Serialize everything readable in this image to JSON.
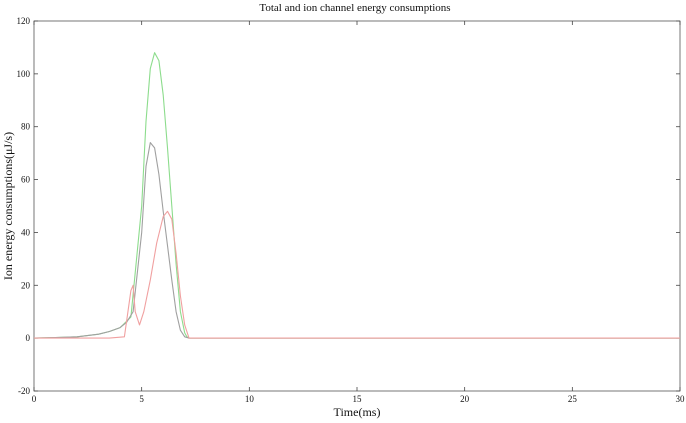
{
  "chart_data": {
    "type": "line",
    "title": "Total and ion channel energy consumptions",
    "xlabel": "Time(ms)",
    "ylabel": "Ion energy consumptions(μJ/s)",
    "xlim": [
      0,
      30
    ],
    "ylim": [
      -20,
      120
    ],
    "xticks": [
      0,
      5,
      10,
      15,
      20,
      25,
      30
    ],
    "yticks": [
      -20,
      0,
      20,
      40,
      60,
      80,
      100,
      120
    ],
    "grid": false,
    "series": [
      {
        "color": "#8cdc8c",
        "x": [
          0,
          1,
          2,
          3,
          3.5,
          4,
          4.5,
          5,
          5.2,
          5.4,
          5.6,
          5.8,
          6,
          6.2,
          6.4,
          6.6,
          6.8,
          7,
          7.1,
          7.2,
          8,
          30
        ],
        "y": [
          0,
          0.2,
          0.5,
          1.5,
          2.5,
          4,
          8,
          50,
          82,
          102,
          108,
          105,
          92,
          72,
          50,
          28,
          10,
          2,
          0.5,
          0,
          0,
          0
        ]
      },
      {
        "color": "#a0a0a0",
        "x": [
          0,
          1,
          2,
          3,
          3.5,
          4,
          4.3,
          4.6,
          5,
          5.2,
          5.4,
          5.6,
          5.8,
          6,
          6.2,
          6.4,
          6.6,
          6.8,
          7,
          7.2,
          8,
          30
        ],
        "y": [
          0,
          0.2,
          0.5,
          1.5,
          2.5,
          4,
          6,
          10,
          40,
          65,
          74,
          72,
          62,
          48,
          35,
          22,
          10,
          3,
          0.5,
          0,
          0,
          0
        ]
      },
      {
        "color": "#f0a0a0",
        "x": [
          0,
          3.5,
          4.2,
          4.5,
          4.6,
          4.7,
          4.9,
          5.1,
          5.4,
          5.7,
          6,
          6.2,
          6.4,
          6.6,
          6.8,
          7,
          7.2,
          8,
          30
        ],
        "y": [
          0,
          0,
          0.5,
          18,
          20,
          10,
          5,
          10,
          22,
          36,
          46,
          48,
          45,
          32,
          16,
          5,
          0,
          0,
          0
        ]
      }
    ]
  }
}
